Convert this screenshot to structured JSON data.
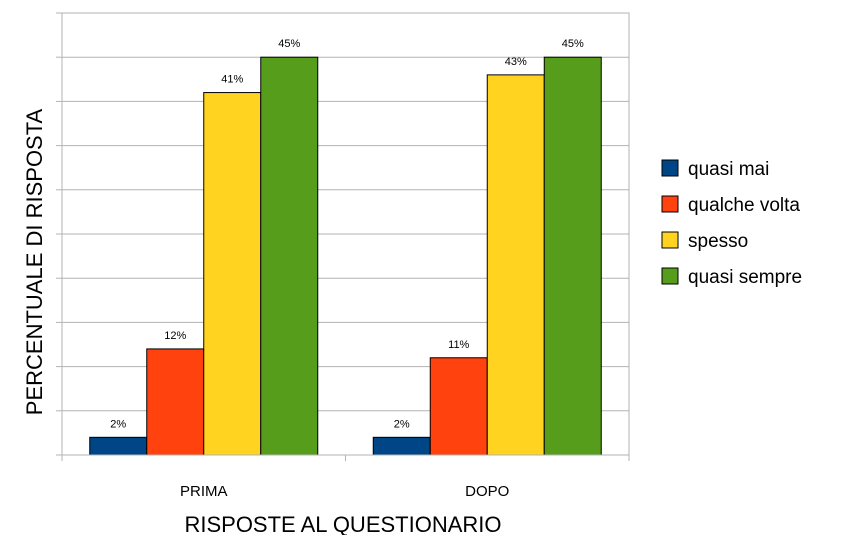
{
  "chart_data": {
    "type": "bar",
    "title": "",
    "xlabel": "RISPOSTE AL QUESTIONARIO",
    "ylabel": "PERCENTUALE DI RISPOSTA",
    "categories": [
      "PRIMA",
      "DOPO"
    ],
    "series": [
      {
        "name": "quasi mai",
        "values": [
          2,
          2
        ],
        "labels": [
          "2%",
          "2%"
        ],
        "color": "#004586"
      },
      {
        "name": "qualche volta",
        "values": [
          12,
          11
        ],
        "labels": [
          "12%",
          "11%"
        ],
        "color": "#ff420e"
      },
      {
        "name": "spesso",
        "values": [
          41,
          43
        ],
        "labels": [
          "41%",
          "43%"
        ],
        "color": "#ffd320"
      },
      {
        "name": "quasi sempre",
        "values": [
          45,
          45
        ],
        "labels": [
          "45%",
          "45%"
        ],
        "color": "#579d1c"
      }
    ],
    "ylim": [
      0,
      50
    ],
    "y_tick_step": 5,
    "y_tick_labels_shown": false,
    "grid": true,
    "legend_position": "right"
  }
}
